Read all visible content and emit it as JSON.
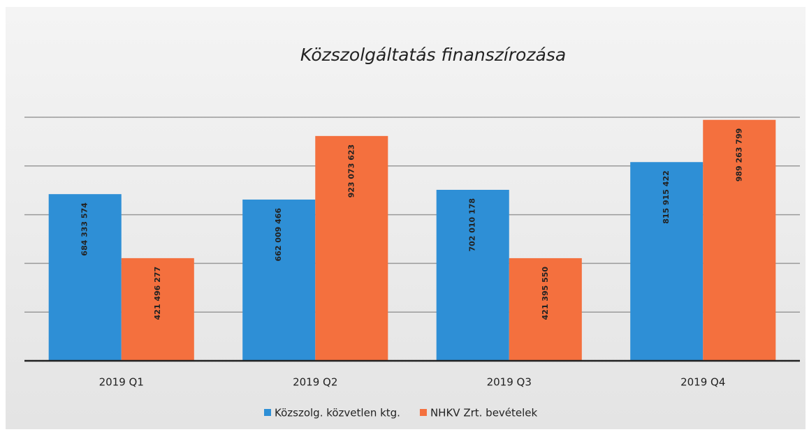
{
  "chart_data": {
    "type": "bar",
    "title": "Közszolgáltatás finanszírozása",
    "categories": [
      "2019 Q1",
      "2019 Q2",
      "2019 Q3",
      "2019 Q4"
    ],
    "series": [
      {
        "name": "Közszolg. közvetlen ktg.",
        "color": "#2e8fd6",
        "values": [
          684333574,
          662009466,
          702010178,
          815915422
        ],
        "value_labels": [
          "684 333 574",
          "662 009 466",
          "702 010 178",
          "815 915 422"
        ]
      },
      {
        "name": "NHKV Zrt. bevételek",
        "color": "#f4703e",
        "values": [
          421496277,
          923073623,
          421395550,
          989263799
        ],
        "value_labels": [
          "421 496 277",
          "923 073 623",
          "421 395 550",
          "989 263 799"
        ]
      }
    ],
    "ylim": [
      0,
      1000000000
    ],
    "yticks": [
      0,
      200000000,
      400000000,
      600000000,
      800000000,
      1000000000
    ],
    "grid": true,
    "legend": "bottom"
  }
}
